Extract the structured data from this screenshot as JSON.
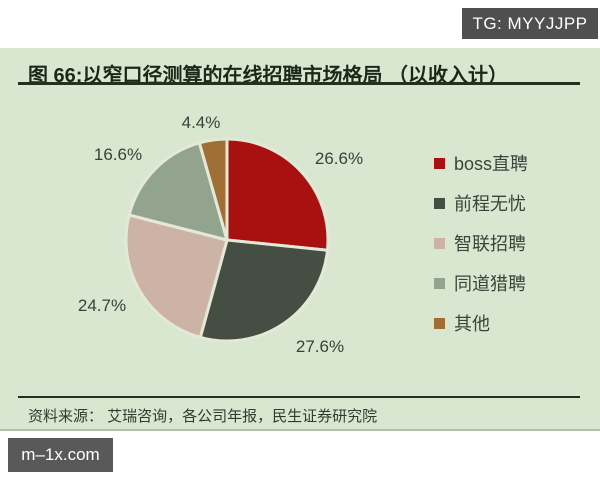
{
  "overlays": {
    "top_badge": "TG: MYYJJPP",
    "bottom_badge": "m–1x.com"
  },
  "figure": {
    "title": "图 66:以窄口径测算的在线招聘市场格局 （以收入计）",
    "source": "资料来源： 艾瑞咨询，各公司年报，民生证券研究院"
  },
  "chart_data": {
    "type": "pie",
    "title": "以窄口径测算的在线招聘市场格局（以收入计）",
    "categories": [
      "boss直聘",
      "前程无忧",
      "智联招聘",
      "同道猎聘",
      "其他"
    ],
    "values": [
      26.6,
      27.6,
      24.7,
      16.6,
      4.4
    ],
    "data_labels": [
      "26.6%",
      "27.6%",
      "24.7%",
      "16.6%",
      "4.4%"
    ],
    "colors": [
      "#a91110",
      "#454e42",
      "#cdb3a6",
      "#92a38e",
      "#a06f35"
    ],
    "start_angle": "12 o'clock",
    "direction": "clockwise",
    "legend_position": "right",
    "background_color": "#d9e6d0",
    "slice_gap_color": "#e3e9d6"
  }
}
